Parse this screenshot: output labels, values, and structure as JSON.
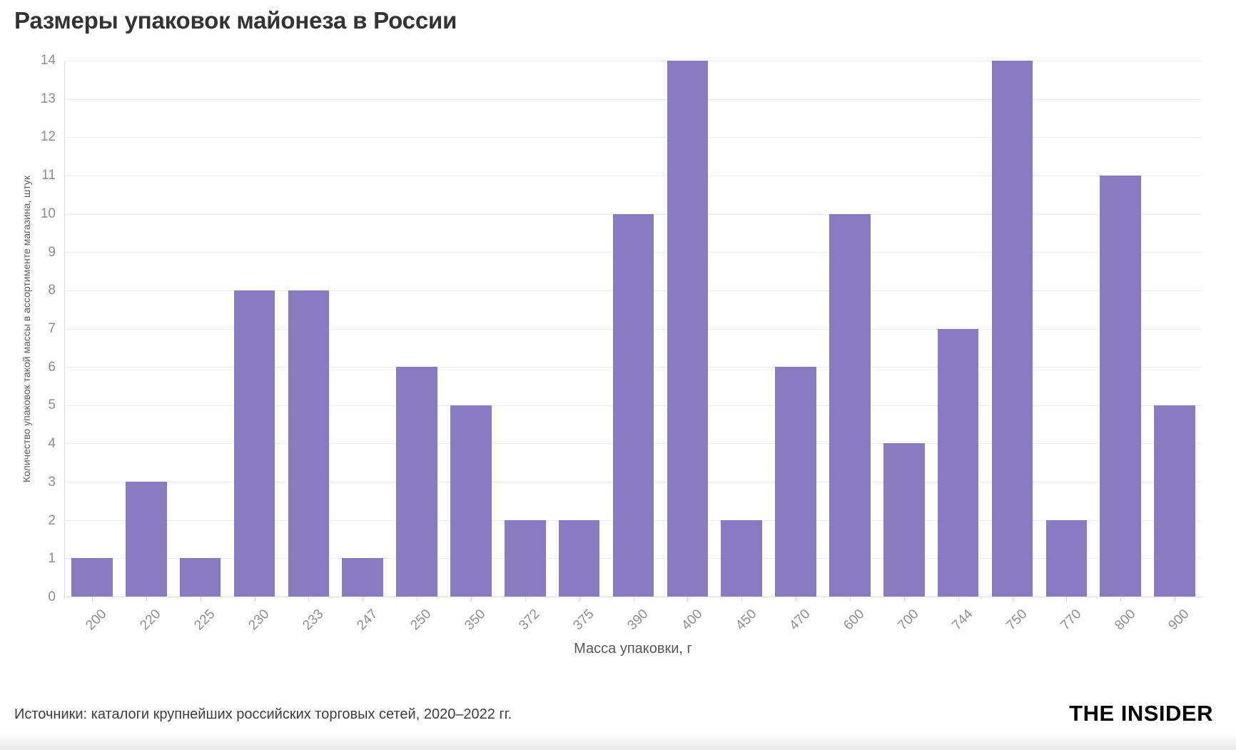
{
  "page": {
    "source_note": "Источники: каталоги крупнейших российских торговых сетей, 2020–2022 гг.",
    "brand": "THE INSIDER"
  },
  "colors": {
    "bar": "#897BC2",
    "gridline": "#ececec",
    "axis_line": "#e4e1e1",
    "tick_label": "#8e8e8e",
    "axis_title": "#5f5f5f",
    "title": "#333333"
  },
  "chart_data": {
    "type": "bar",
    "title": "Размеры упаковок майонеза в России",
    "xlabel": "Масса упаковки, г",
    "ylabel": "Количество упаковок такой массы в ассортименте магазина, штук",
    "categories": [
      "200",
      "220",
      "225",
      "230",
      "233",
      "247",
      "250",
      "350",
      "372",
      "375",
      "390",
      "400",
      "450",
      "470",
      "600",
      "700",
      "744",
      "750",
      "770",
      "800",
      "900"
    ],
    "values": [
      1,
      3,
      1,
      8,
      8,
      1,
      6,
      5,
      2,
      2,
      10,
      14,
      2,
      6,
      10,
      4,
      7,
      14,
      2,
      11,
      5
    ],
    "ylim": [
      0,
      14
    ],
    "ytick_step": 1,
    "grid": "horizontal-only",
    "legend": "none",
    "x_label_rotation_deg": -45
  }
}
